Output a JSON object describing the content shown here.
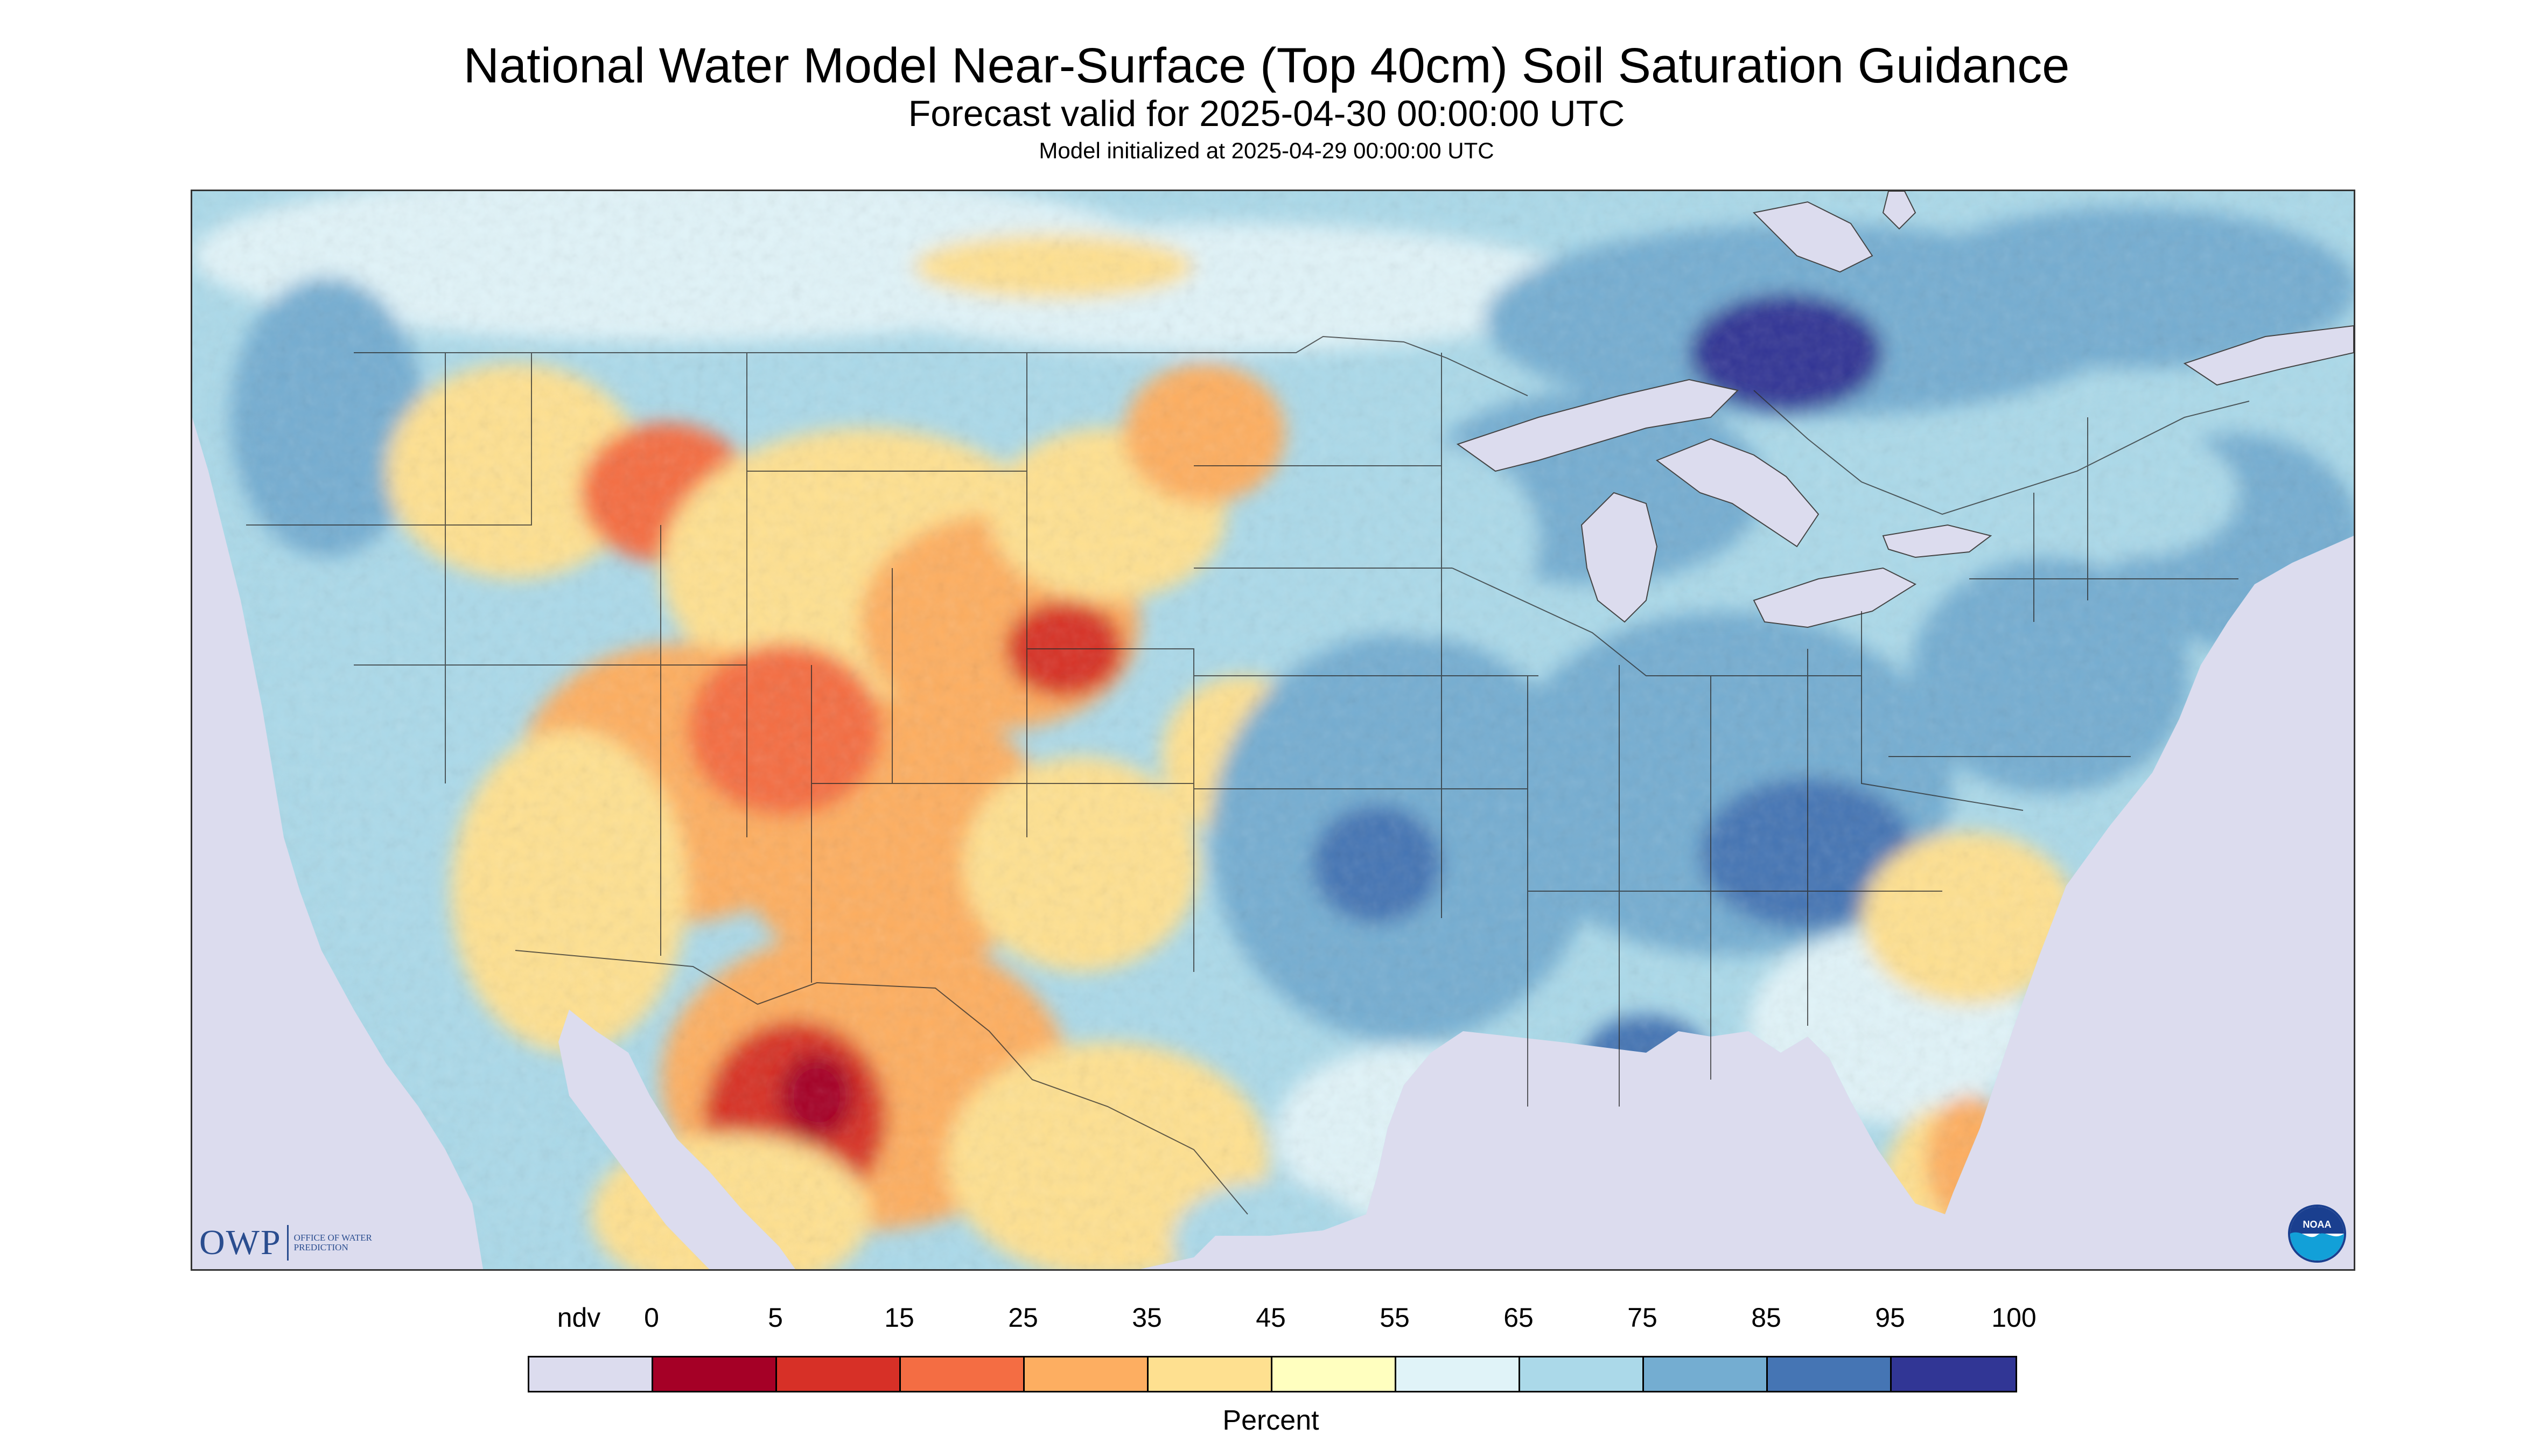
{
  "title": "National Water Model Near-Surface (Top 40cm) Soil Saturation Guidance",
  "subtitle": "Forecast valid for 2025-04-30 00:00:00 UTC",
  "init_line": "Model initialized at 2025-04-29 00:00:00 UTC",
  "logo": {
    "mark": "OWP",
    "subtext": "Office of Water Prediction",
    "noaa_text": "NOAA"
  },
  "legend": {
    "unit": "Percent",
    "tick_labels": [
      "ndv",
      "0",
      "5",
      "15",
      "25",
      "35",
      "45",
      "55",
      "65",
      "75",
      "85",
      "95",
      "100"
    ],
    "colors": [
      "#dcdcee",
      "#a50026",
      "#d73027",
      "#f46d43",
      "#fdae61",
      "#fee090",
      "#ffffbf",
      "#e0f3f8",
      "#abd9e9",
      "#74add1",
      "#4575b4",
      "#313695"
    ]
  },
  "map": {
    "nodata_color": "#dcdcee",
    "land_base_color": "#abd9e9",
    "water_color": "#dcdcee"
  }
}
